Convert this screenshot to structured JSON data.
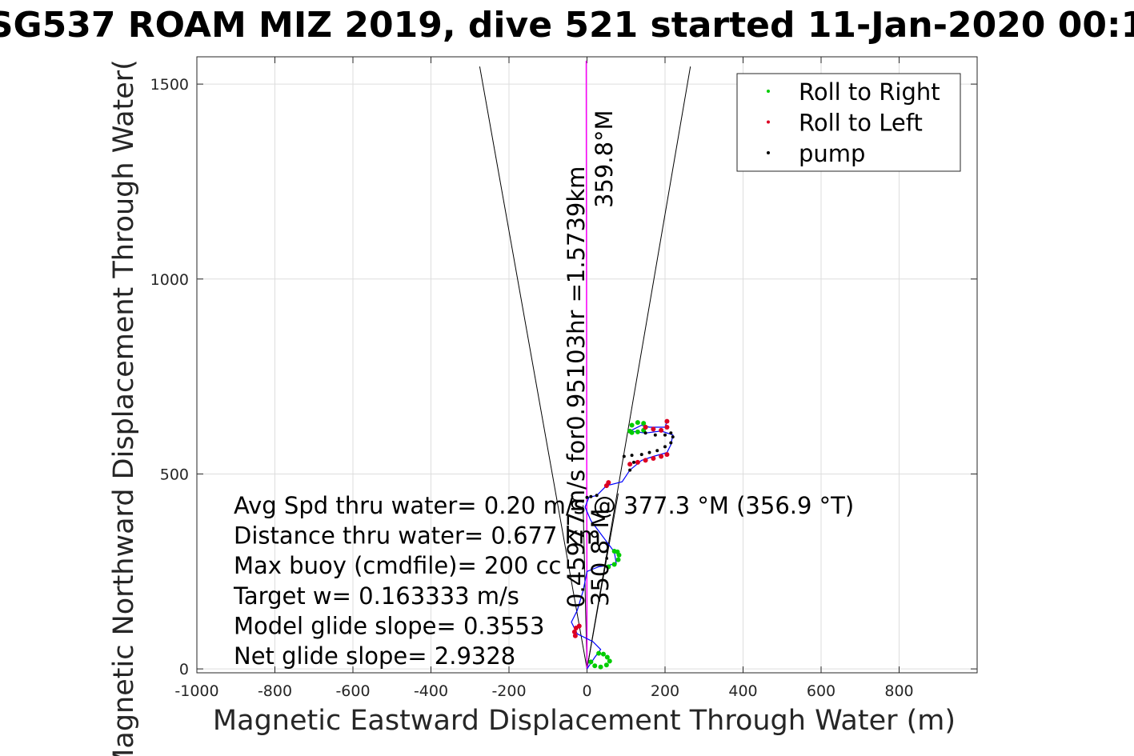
{
  "chart_data": {
    "type": "scatter",
    "title": "SG537 ROAM MIZ 2019, dive 521 started 11-Jan-2020 00:1",
    "xlabel": "Magnetic Eastward Displacement Through Water (m)",
    "ylabel": "Magnetic Northward Displacement Through Water(",
    "xlim": [
      -1000,
      1000
    ],
    "ylim": [
      -10,
      1570
    ],
    "xticks": [
      -1000,
      -800,
      -600,
      -400,
      -200,
      0,
      200,
      400,
      600,
      800
    ],
    "yticks": [
      0,
      500,
      1000,
      1500
    ],
    "grid": true,
    "legend": {
      "placement": "top-right",
      "entries": [
        {
          "label": "Roll to Right",
          "color": "#00cc00"
        },
        {
          "label": "Roll to Left",
          "color": "#dd0022"
        },
        {
          "label": "pump",
          "color": "#000000"
        }
      ]
    },
    "series": [
      {
        "name": "track",
        "color": "#0000ff",
        "points": [
          [
            0,
            0
          ],
          [
            20,
            30
          ],
          [
            35,
            50
          ],
          [
            15,
            70
          ],
          [
            -25,
            90
          ],
          [
            -40,
            120
          ],
          [
            -25,
            150
          ],
          [
            -10,
            200
          ],
          [
            0,
            250
          ],
          [
            30,
            262
          ],
          [
            50,
            265
          ],
          [
            75,
            270
          ],
          [
            70,
            300
          ],
          [
            40,
            340
          ],
          [
            10,
            380
          ],
          [
            -5,
            415
          ],
          [
            5,
            440
          ],
          [
            25,
            445
          ],
          [
            50,
            470
          ],
          [
            90,
            480
          ],
          [
            110,
            510
          ],
          [
            140,
            535
          ],
          [
            170,
            545
          ],
          [
            205,
            555
          ],
          [
            215,
            575
          ],
          [
            220,
            600
          ],
          [
            190,
            610
          ],
          [
            150,
            605
          ],
          [
            110,
            610
          ],
          [
            140,
            625
          ],
          [
            160,
            620
          ],
          [
            200,
            620
          ],
          [
            205,
            635
          ]
        ]
      },
      {
        "name": "Roll to Right",
        "color": "#00cc00",
        "points": [
          [
            10,
            18
          ],
          [
            20,
            8
          ],
          [
            35,
            5
          ],
          [
            50,
            10
          ],
          [
            58,
            20
          ],
          [
            52,
            30
          ],
          [
            42,
            38
          ],
          [
            30,
            40
          ],
          [
            55,
            262
          ],
          [
            70,
            268
          ],
          [
            80,
            280
          ],
          [
            82,
            292
          ],
          [
            78,
            300
          ],
          [
            70,
            302
          ],
          [
            110,
            610
          ],
          [
            115,
            625
          ],
          [
            130,
            632
          ],
          [
            145,
            630
          ],
          [
            150,
            620
          ],
          [
            145,
            612
          ],
          [
            130,
            608
          ],
          [
            115,
            606
          ]
        ]
      },
      {
        "name": "Roll to Left",
        "color": "#dd0022",
        "points": [
          [
            -30,
            85
          ],
          [
            -32,
            95
          ],
          [
            -28,
            105
          ],
          [
            -20,
            110
          ],
          [
            110,
            525
          ],
          [
            130,
            530
          ],
          [
            150,
            535
          ],
          [
            170,
            540
          ],
          [
            190,
            545
          ],
          [
            205,
            550
          ],
          [
            150,
            620
          ],
          [
            170,
            615
          ],
          [
            190,
            612
          ],
          [
            205,
            620
          ],
          [
            205,
            635
          ],
          [
            50,
            470
          ],
          [
            55,
            478
          ]
        ]
      },
      {
        "name": "pump",
        "color": "#000000",
        "points": [
          [
            0,
            440
          ],
          [
            10,
            442
          ],
          [
            25,
            445
          ],
          [
            110,
            510
          ],
          [
            120,
            530
          ],
          [
            150,
            605
          ],
          [
            175,
            600
          ],
          [
            200,
            600
          ],
          [
            215,
            605
          ],
          [
            220,
            595
          ],
          [
            215,
            580
          ],
          [
            200,
            570
          ],
          [
            180,
            560
          ],
          [
            160,
            555
          ],
          [
            140,
            550
          ],
          [
            115,
            548
          ],
          [
            95,
            545
          ]
        ]
      }
    ],
    "lines": {
      "heading_line_color": "#ff00ff",
      "heading_line": [
        [
          0,
          0
        ],
        [
          -2,
          1560
        ]
      ],
      "cone_left": [
        [
          0,
          0
        ],
        [
          -275,
          1545
        ]
      ],
      "cone_right": [
        [
          0,
          0
        ],
        [
          265,
          1545
        ]
      ],
      "cone_inner_left": [
        [
          0,
          0
        ],
        [
          -10,
          420
        ]
      ],
      "cone_inner_right": [
        [
          0,
          0
        ],
        [
          80,
          450
        ]
      ]
    },
    "annotations": {
      "vertical_1": "0.45977m/s for0.95103hr =1.5739km",
      "vertical_2": "359.8°M",
      "vertical_3": "350.8°M",
      "stats": [
        "Avg Spd thru water=  0.20 m/s @ 377.3 °M (356.9 °T)",
        "Distance thru water=  0.677 km",
        "Max buoy (cmdfile)= 200 cc",
        "Target w= 0.163333 m/s",
        "Model glide slope= 0.3553",
        "Net glide slope= 2.9328"
      ]
    }
  }
}
